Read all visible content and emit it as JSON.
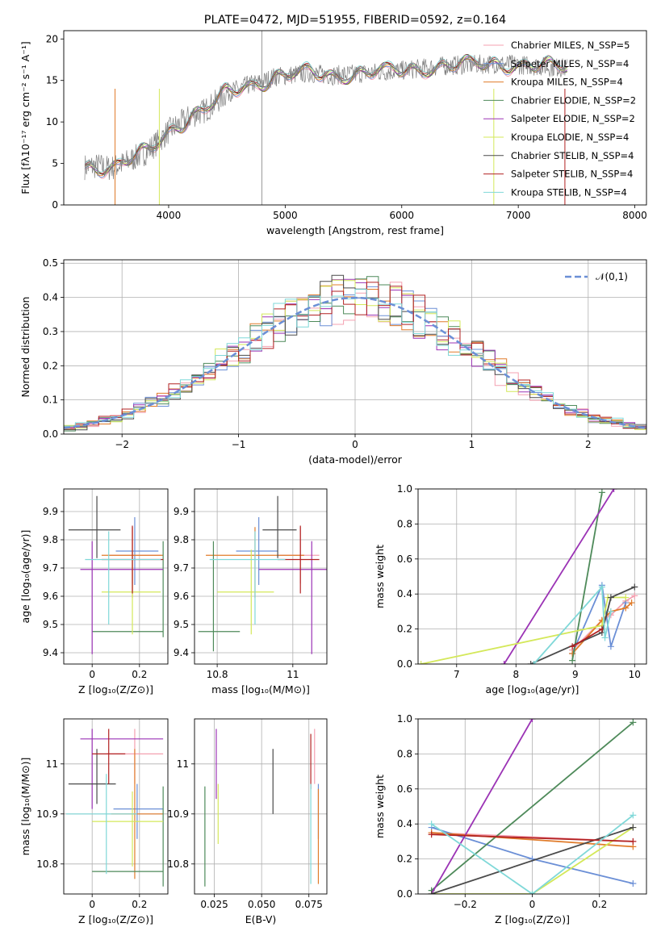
{
  "chart_data": [
    {
      "id": "spectrum",
      "type": "line",
      "title": "PLATE=0472, MJD=51955, FIBERID=0592, z=0.164",
      "xlabel": "wavelength [Angstrom, rest frame]",
      "ylabel": "Flux [fλ10⁻¹⁷ erg cm⁻² s⁻¹ A⁻¹]",
      "xlim": [
        3100,
        8100
      ],
      "ylim": [
        0,
        21
      ],
      "xticks": [
        4000,
        5000,
        6000,
        7000,
        8000
      ],
      "yticks": [
        0,
        5,
        10,
        15,
        20
      ],
      "grid": false,
      "legend": "top-right",
      "observed_spectrum_color": "#808080",
      "series": [
        {
          "name": "Chabrier MILES, N_SSP=5",
          "color": "#f4a0b0"
        },
        {
          "name": "Salpeter MILES, N_SSP=4",
          "color": "#6b8fd6"
        },
        {
          "name": "Kroupa MILES, N_SSP=4",
          "color": "#e07b2a"
        },
        {
          "name": "Chabrier ELODIE, N_SSP=2",
          "color": "#4e8a5a"
        },
        {
          "name": "Salpeter ELODIE, N_SSP=2",
          "color": "#9b33b5"
        },
        {
          "name": "Kroupa ELODIE, N_SSP=4",
          "color": "#d4e85a"
        },
        {
          "name": "Chabrier STELIB, N_SSP=4",
          "color": "#4a4a4a"
        },
        {
          "name": "Salpeter STELIB, N_SSP=4",
          "color": "#b22222"
        },
        {
          "name": "Kroupa STELIB, N_SSP=4",
          "color": "#7fd8d8"
        }
      ],
      "continuum": {
        "x": [
          3280,
          3400,
          3500,
          3600,
          3700,
          3800,
          3900,
          4000,
          4100,
          4200,
          4300,
          4400,
          4500,
          4600,
          4700,
          4800,
          4900,
          5000,
          5200,
          5400,
          5600,
          5800,
          6000,
          6200,
          6400,
          6600,
          6800,
          7000,
          7200,
          7400
        ],
        "y": [
          4.6,
          4.7,
          4.4,
          4.9,
          5.6,
          6.3,
          7.5,
          8.9,
          9.8,
          10.8,
          11.3,
          12.3,
          13.5,
          14.0,
          14.5,
          14.8,
          15.4,
          15.6,
          15.9,
          15.6,
          15.8,
          16.0,
          16.2,
          16.5,
          16.8,
          16.9,
          17.0,
          16.9,
          16.7,
          16.5
        ]
      }
    },
    {
      "id": "residuals",
      "type": "histogram",
      "xlabel": "(data-model)/error",
      "ylabel": "Normed distribution",
      "xlim": [
        -2.5,
        2.5
      ],
      "ylim": [
        0,
        0.51
      ],
      "xticks": [
        -2,
        -1,
        0,
        1,
        2
      ],
      "yticks": [
        0.0,
        0.1,
        0.2,
        0.3,
        0.4,
        0.5
      ],
      "grid": true,
      "legend": "top-right",
      "reference": {
        "name": "𝒩(0,1)",
        "color": "#6b8fd6",
        "style": "dashed",
        "mean": 0,
        "sigma": 1
      }
    },
    {
      "id": "age-vs-Z",
      "type": "errorbar",
      "xlabel": "Z [log₁₀(Z/Z⊙)]",
      "ylabel": "age  [log₁₀(age/yr)]",
      "xlim": [
        -0.12,
        0.32
      ],
      "ylim": [
        9.36,
        9.98
      ],
      "xticks": [
        0.0,
        0.2
      ],
      "yticks": [
        9.4,
        9.5,
        9.6,
        9.7,
        9.8,
        9.9
      ],
      "grid": true,
      "points": [
        {
          "x": 0.17,
          "y": 9.745,
          "xerr": [
            0.1,
            0.12
          ],
          "yerr": [
            0.1,
            0.1
          ],
          "color": "#f4a0b0"
        },
        {
          "x": 0.18,
          "y": 9.76,
          "xerr": [
            0.08,
            0.1
          ],
          "yerr": [
            0.12,
            0.12
          ],
          "color": "#6b8fd6"
        },
        {
          "x": 0.17,
          "y": 9.745,
          "xerr": [
            0.13,
            0.13
          ],
          "yerr": [
            0.15,
            0.1
          ],
          "color": "#e07b2a"
        },
        {
          "x": 0.3,
          "y": 9.475,
          "xerr": [
            0.3,
            0.0
          ],
          "yerr": [
            0.02,
            0.32
          ],
          "color": "#4e8a5a"
        },
        {
          "x": 0.0,
          "y": 9.695,
          "xerr": [
            0.05,
            0.3
          ],
          "yerr": [
            0.3,
            0.1
          ],
          "color": "#9b33b5"
        },
        {
          "x": 0.17,
          "y": 9.615,
          "xerr": [
            0.13,
            0.12
          ],
          "yerr": [
            0.15,
            0.15
          ],
          "color": "#d4e85a"
        },
        {
          "x": 0.02,
          "y": 9.835,
          "xerr": [
            0.12,
            0.1
          ],
          "yerr": [
            0.1,
            0.12
          ],
          "color": "#4a4a4a"
        },
        {
          "x": 0.17,
          "y": 9.73,
          "xerr": [
            0.13,
            0.13
          ],
          "yerr": [
            0.12,
            0.12
          ],
          "color": "#b22222"
        },
        {
          "x": 0.07,
          "y": 9.73,
          "xerr": [
            0.1,
            0.22
          ],
          "yerr": [
            0.23,
            0.1
          ],
          "color": "#7fd8d8"
        }
      ]
    },
    {
      "id": "age-vs-mass",
      "type": "errorbar",
      "xlabel": "mass [log₁₀(M/M⊙)]",
      "ylabel": "",
      "xlim": [
        10.74,
        11.09
      ],
      "ylim": [
        9.36,
        9.98
      ],
      "xticks": [
        10.8,
        11.0
      ],
      "yticks": [
        9.4,
        9.5,
        9.6,
        9.7,
        9.8,
        9.9
      ],
      "grid": true,
      "points": [
        {
          "x": 11.02,
          "y": 9.745,
          "xerr": [
            0.06,
            0.05
          ],
          "yerr": [
            0.1,
            0.1
          ],
          "color": "#f4a0b0"
        },
        {
          "x": 10.91,
          "y": 9.76,
          "xerr": [
            0.06,
            0.05
          ],
          "yerr": [
            0.12,
            0.12
          ],
          "color": "#6b8fd6"
        },
        {
          "x": 10.9,
          "y": 9.745,
          "xerr": [
            0.13,
            0.13
          ],
          "yerr": [
            0.15,
            0.1
          ],
          "color": "#e07b2a"
        },
        {
          "x": 10.79,
          "y": 9.475,
          "xerr": [
            0.04,
            0.07
          ],
          "yerr": [
            0.07,
            0.32
          ],
          "color": "#4e8a5a"
        },
        {
          "x": 11.05,
          "y": 9.695,
          "xerr": [
            0.14,
            0.05
          ],
          "yerr": [
            0.3,
            0.1
          ],
          "color": "#9b33b5"
        },
        {
          "x": 10.89,
          "y": 9.615,
          "xerr": [
            0.09,
            0.06
          ],
          "yerr": [
            0.15,
            0.15
          ],
          "color": "#d4e85a"
        },
        {
          "x": 10.96,
          "y": 9.835,
          "xerr": [
            0.04,
            0.05
          ],
          "yerr": [
            0.1,
            0.12
          ],
          "color": "#4a4a4a"
        },
        {
          "x": 11.02,
          "y": 9.73,
          "xerr": [
            0.06,
            0.05
          ],
          "yerr": [
            0.12,
            0.12
          ],
          "color": "#b22222"
        },
        {
          "x": 10.9,
          "y": 9.73,
          "xerr": [
            0.12,
            0.08
          ],
          "yerr": [
            0.23,
            0.1
          ],
          "color": "#7fd8d8"
        }
      ]
    },
    {
      "id": "weight-vs-age",
      "type": "line",
      "xlabel": "age  [log₁₀(age/yr)]",
      "ylabel": "mass weight",
      "xlim": [
        6.35,
        10.2
      ],
      "ylim": [
        0,
        1
      ],
      "xticks": [
        7,
        8,
        9,
        10
      ],
      "yticks": [
        0.0,
        0.2,
        0.4,
        0.6,
        0.8,
        1.0
      ],
      "grid": true,
      "series": [
        {
          "color": "#f4a0b0",
          "x": [
            8.95,
            9.45,
            9.6,
            9.85,
            10.0
          ],
          "y": [
            0.08,
            0.25,
            0.28,
            0.36,
            0.39
          ]
        },
        {
          "color": "#6b8fd6",
          "x": [
            8.95,
            9.45,
            9.6,
            9.85
          ],
          "y": [
            0.06,
            0.45,
            0.1,
            0.35
          ]
        },
        {
          "color": "#e07b2a",
          "x": [
            8.95,
            9.45,
            9.6,
            9.85,
            9.95
          ],
          "y": [
            0.06,
            0.25,
            0.3,
            0.32,
            0.35
          ]
        },
        {
          "color": "#4e8a5a",
          "x": [
            8.95,
            9.45
          ],
          "y": [
            0.02,
            0.98
          ]
        },
        {
          "color": "#9b33b5",
          "x": [
            7.8,
            9.65
          ],
          "y": [
            0.0,
            1.0
          ]
        },
        {
          "color": "#d4e85a",
          "x": [
            6.4,
            9.45,
            9.55,
            9.85
          ],
          "y": [
            0.0,
            0.22,
            0.38,
            0.38
          ]
        },
        {
          "color": "#4a4a4a",
          "x": [
            8.25,
            9.45,
            9.6,
            10.0
          ],
          "y": [
            0.0,
            0.18,
            0.38,
            0.44
          ]
        },
        {
          "color": "#b22222",
          "x": [
            8.95,
            9.45
          ],
          "y": [
            0.1,
            0.2
          ]
        },
        {
          "color": "#7fd8d8",
          "x": [
            8.3,
            9.45,
            9.5,
            9.6
          ],
          "y": [
            0.0,
            0.44,
            0.15,
            0.3
          ]
        }
      ]
    },
    {
      "id": "mass-vs-Z",
      "type": "errorbar",
      "xlabel": "Z [log₁₀(Z/Z⊙)]",
      "ylabel": "mass [log₁₀(M/M⊙)]",
      "xlim": [
        -0.12,
        0.32
      ],
      "ylim": [
        10.74,
        11.09
      ],
      "xticks": [
        0.0,
        0.2
      ],
      "yticks": [
        10.8,
        10.9,
        11.0
      ],
      "grid": true,
      "points": [
        {
          "x": 0.18,
          "y": 11.02,
          "xerr": [
            0.12,
            0.12
          ],
          "yerr": [
            0.06,
            0.05
          ],
          "color": "#f4a0b0"
        },
        {
          "x": 0.19,
          "y": 10.91,
          "xerr": [
            0.1,
            0.11
          ],
          "yerr": [
            0.06,
            0.05
          ],
          "color": "#6b8fd6"
        },
        {
          "x": 0.18,
          "y": 10.9,
          "xerr": [
            0.1,
            0.12
          ],
          "yerr": [
            0.13,
            0.13
          ],
          "color": "#e07b2a"
        },
        {
          "x": 0.3,
          "y": 10.785,
          "xerr": [
            0.3,
            0.0
          ],
          "yerr": [
            0.03,
            0.17
          ],
          "color": "#4e8a5a"
        },
        {
          "x": 0.0,
          "y": 11.05,
          "xerr": [
            0.05,
            0.3
          ],
          "yerr": [
            0.14,
            0.02
          ],
          "color": "#9b33b5"
        },
        {
          "x": 0.17,
          "y": 10.885,
          "xerr": [
            0.17,
            0.13
          ],
          "yerr": [
            0.09,
            0.06
          ],
          "color": "#d4e85a"
        },
        {
          "x": 0.02,
          "y": 10.96,
          "xerr": [
            0.12,
            0.08
          ],
          "yerr": [
            0.04,
            0.07
          ],
          "color": "#4a4a4a"
        },
        {
          "x": 0.07,
          "y": 11.02,
          "xerr": [
            0.07,
            0.07
          ],
          "yerr": [
            0.06,
            0.05
          ],
          "color": "#b22222"
        },
        {
          "x": 0.06,
          "y": 10.9,
          "xerr": [
            0.17,
            0.13
          ],
          "yerr": [
            0.12,
            0.08
          ],
          "color": "#7fd8d8"
        }
      ]
    },
    {
      "id": "mass-vs-EBV",
      "type": "errorbar",
      "xlabel": "E(B-V)",
      "ylabel": "",
      "xlim": [
        0.0145,
        0.0845
      ],
      "ylim": [
        10.74,
        11.09
      ],
      "xticks": [
        0.025,
        0.05,
        0.075
      ],
      "xticklabels": [
        "0.025",
        "0.050",
        "0.075"
      ],
      "yticks": [
        10.8,
        10.9,
        11.0
      ],
      "grid": true,
      "points": [
        {
          "x": 0.078,
          "y": 11.02,
          "xerr": [
            0,
            0
          ],
          "yerr": [
            0.06,
            0.05
          ],
          "color": "#f4a0b0"
        },
        {
          "x": 0.08,
          "y": 10.91,
          "xerr": [
            0,
            0
          ],
          "yerr": [
            0.06,
            0.05
          ],
          "color": "#6b8fd6"
        },
        {
          "x": 0.08,
          "y": 10.9,
          "xerr": [
            0,
            0
          ],
          "yerr": [
            0.14,
            0.05
          ],
          "color": "#e07b2a"
        },
        {
          "x": 0.02,
          "y": 10.86,
          "xerr": [
            0,
            0
          ],
          "yerr": [
            0.105,
            0.095
          ],
          "color": "#4e8a5a"
        },
        {
          "x": 0.026,
          "y": 11.0,
          "xerr": [
            0,
            0
          ],
          "yerr": [
            0.07,
            0.07
          ],
          "color": "#9b33b5"
        },
        {
          "x": 0.027,
          "y": 10.9,
          "xerr": [
            0,
            0
          ],
          "yerr": [
            0.06,
            0.06
          ],
          "color": "#d4e85a"
        },
        {
          "x": 0.056,
          "y": 10.97,
          "xerr": [
            0,
            0
          ],
          "yerr": [
            0.07,
            0.06
          ],
          "color": "#4a4a4a"
        },
        {
          "x": 0.076,
          "y": 11.02,
          "xerr": [
            0,
            0
          ],
          "yerr": [
            0.07,
            0.04
          ],
          "color": "#b22222"
        },
        {
          "x": 0.076,
          "y": 10.86,
          "xerr": [
            0,
            0
          ],
          "yerr": [
            0.1,
            0.1
          ],
          "color": "#7fd8d8"
        }
      ]
    },
    {
      "id": "weight-vs-Z",
      "type": "line",
      "xlabel": "Z [log₁₀(Z/Z⊙)]",
      "ylabel": "mass weight",
      "xlim": [
        -0.34,
        0.34
      ],
      "ylim": [
        0,
        1
      ],
      "xticks": [
        -0.2,
        0.0,
        0.2
      ],
      "yticks": [
        0.0,
        0.2,
        0.4,
        0.6,
        0.8,
        1.0
      ],
      "grid": true,
      "series": [
        {
          "color": "#f4a0b0",
          "x": [
            -0.3,
            0.3
          ],
          "y": [
            0.35,
            0.3
          ]
        },
        {
          "color": "#6b8fd6",
          "x": [
            -0.3,
            0.0,
            0.3
          ],
          "y": [
            0.38,
            0.2,
            0.06
          ]
        },
        {
          "color": "#e07b2a",
          "x": [
            -0.3,
            0.3
          ],
          "y": [
            0.35,
            0.27
          ]
        },
        {
          "color": "#4e8a5a",
          "x": [
            -0.3,
            0.3
          ],
          "y": [
            0.02,
            0.98
          ]
        },
        {
          "color": "#9b33b5",
          "x": [
            -0.3,
            0.0
          ],
          "y": [
            0.0,
            1.0
          ]
        },
        {
          "color": "#d4e85a",
          "x": [
            -0.3,
            0.0,
            0.3
          ],
          "y": [
            0.0,
            0.0,
            0.38
          ]
        },
        {
          "color": "#4a4a4a",
          "x": [
            -0.3,
            0.3
          ],
          "y": [
            0.0,
            0.38
          ]
        },
        {
          "color": "#b22222",
          "x": [
            -0.3,
            0.3
          ],
          "y": [
            0.34,
            0.3
          ]
        },
        {
          "color": "#7fd8d8",
          "x": [
            -0.3,
            0.0,
            0.3
          ],
          "y": [
            0.4,
            0.0,
            0.45
          ]
        }
      ]
    }
  ]
}
